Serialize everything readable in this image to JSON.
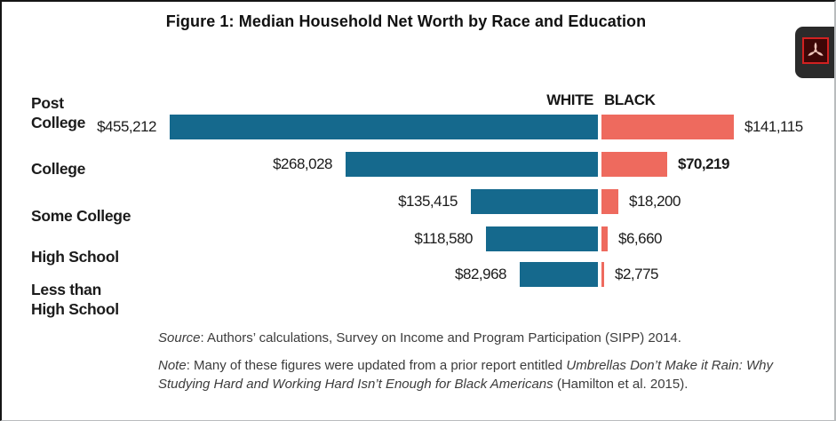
{
  "title": "Figure 1: Median Household Net Worth by Race and Education",
  "chart_data": {
    "type": "bar",
    "orientation": "diverging-horizontal",
    "title": "Figure 1: Median Household Net Worth by Race and Education",
    "categories": [
      "Post\nCollege",
      "College",
      "Some College",
      "High School",
      "Less than\nHigh School"
    ],
    "legend_position": "top-center-of-axis",
    "grid": false,
    "series": [
      {
        "name": "WHITE",
        "color": "#15698d",
        "side": "left",
        "values": [
          455212,
          268028,
          135415,
          118580,
          82968
        ],
        "labels": [
          "$455,212",
          "$268,028",
          "$135,415",
          "$118,580",
          "$82,968"
        ],
        "bold_labels": [
          false,
          false,
          false,
          false,
          false
        ]
      },
      {
        "name": "BLACK",
        "color": "#ee6a5e",
        "side": "right",
        "values": [
          141115,
          70219,
          18200,
          6660,
          2775
        ],
        "labels": [
          "$141,115",
          "$70,219",
          "$18,200",
          "$6,660",
          "$2,775"
        ],
        "bold_labels": [
          false,
          true,
          false,
          false,
          false
        ]
      }
    ]
  },
  "source": {
    "label_italic": "Source",
    "rest": ": Authors’ calculations, Survey on Income and Program Participation (SIPP) 2014."
  },
  "note": {
    "label_italic": "Note",
    "part1": ": Many of these figures were updated from a prior report entitled ",
    "report_title_italic": "Umbrellas Don’t Make it Rain: Why Studying Hard and Working Hard Isn’t Enough for Black Americans",
    "part2": " (Hamilton et al. 2015)."
  },
  "icons": {
    "pdf": "adobe-acrobat-logo"
  }
}
